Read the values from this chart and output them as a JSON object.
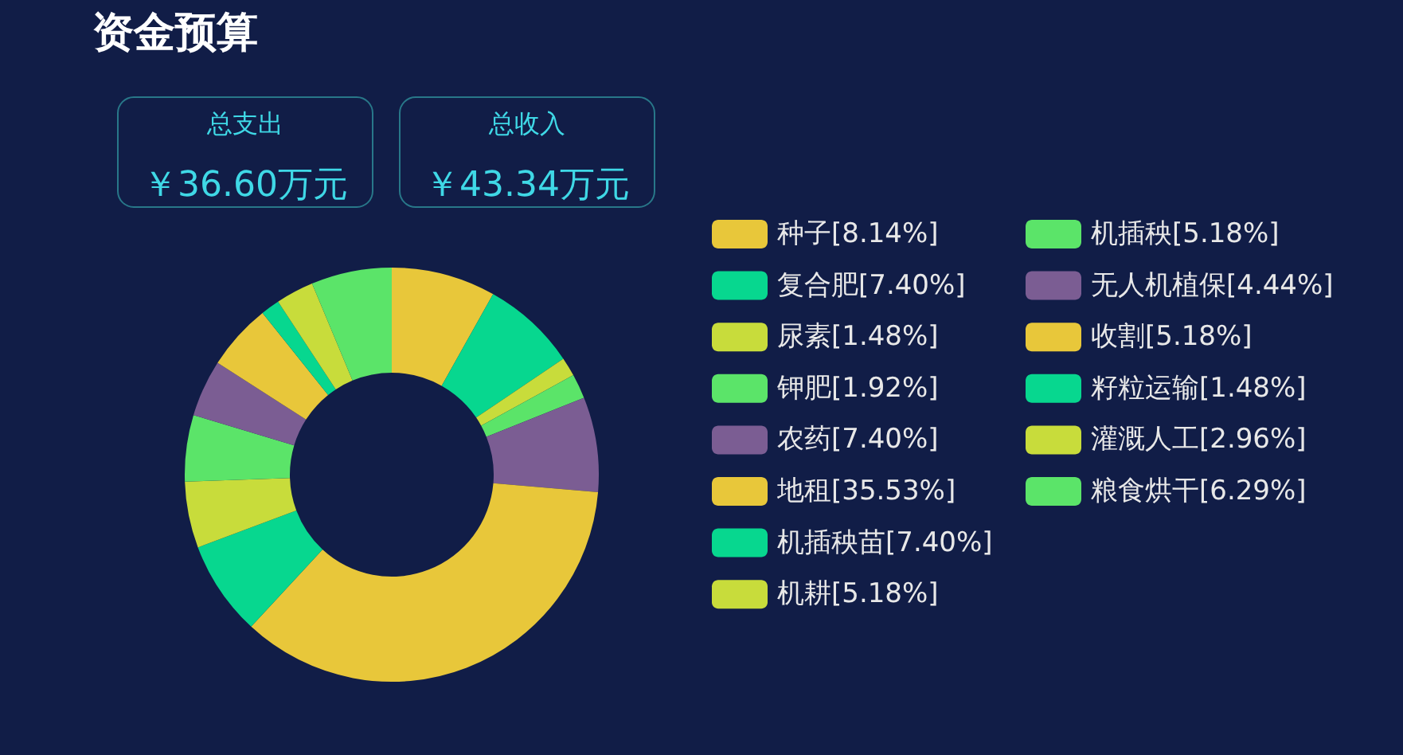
{
  "chart_data": {
    "type": "donut",
    "title": "资金预算",
    "annotations": [
      "总支出",
      "￥36.60万元",
      "总收入",
      "￥43.34万元"
    ],
    "categories": [
      "种子[8.14%]",
      "复合肥[7.40%]",
      "尿素[1.48%]",
      "钾肥[1.92%]",
      "农药[7.40%]",
      "地租[35.53%]",
      "机插秧苗[7.40%]",
      "机耕[5.18%]",
      "机插秧[5.18%]",
      "无人机植保[4.44%]",
      "收割[5.18%]",
      "籽粒运输[1.48%]",
      "灌溉人工[2.96%]",
      "粮食烘干[6.29%]"
    ],
    "values": [
      8.14,
      7.4,
      1.48,
      1.92,
      7.4,
      35.53,
      7.4,
      5.18,
      5.18,
      4.44,
      5.18,
      1.48,
      2.96,
      6.29
    ],
    "colors": [
      "#e8c73a",
      "#07d78f",
      "#c8dc3b",
      "#5be469",
      "#7b5d93",
      "#e8c73a",
      "#07d78f",
      "#c8dc3b",
      "#5be469",
      "#7b5d93",
      "#e8c73a",
      "#07d78f",
      "#c8dc3b",
      "#5be469"
    ],
    "legend": "right"
  }
}
